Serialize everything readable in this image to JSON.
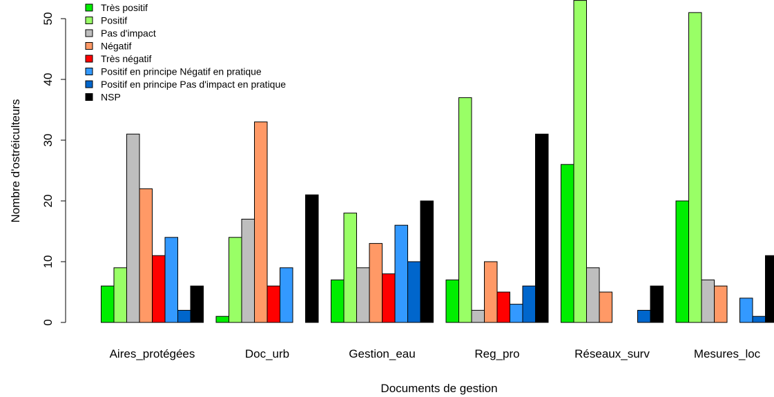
{
  "chart_data": {
    "type": "bar",
    "title": "",
    "xlabel": "Documents de gestion",
    "ylabel": "Nombre d'ostréiculteurs",
    "ylim": [
      0,
      53
    ],
    "yticks": [
      "0",
      "10",
      "20",
      "30",
      "40",
      "50"
    ],
    "ytick_values": [
      0,
      10,
      20,
      30,
      40,
      50
    ],
    "grid": false,
    "legend_position": "top-left",
    "categories": [
      "Aires_protégées",
      "Doc_urb",
      "Gestion_eau",
      "Reg_pro",
      "Réseaux_surv",
      "Mesures_loc"
    ],
    "series": [
      {
        "name": "Très positif",
        "color": "#00ee00",
        "values": [
          6,
          1,
          7,
          7,
          26,
          20
        ]
      },
      {
        "name": "Positif",
        "color": "#99ff66",
        "values": [
          9,
          14,
          18,
          37,
          53,
          51
        ]
      },
      {
        "name": "Pas d'impact",
        "color": "#bebebe",
        "values": [
          31,
          17,
          9,
          2,
          9,
          7
        ]
      },
      {
        "name": "Négatif",
        "color": "#ff9966",
        "values": [
          22,
          33,
          13,
          10,
          5,
          6
        ]
      },
      {
        "name": "Très négatif",
        "color": "#ff0000",
        "values": [
          11,
          6,
          8,
          5,
          0,
          0
        ]
      },
      {
        "name": "Positif en principe Négatif en pratique",
        "color": "#3399ff",
        "values": [
          14,
          9,
          16,
          3,
          0,
          4
        ]
      },
      {
        "name": "Positif en principe Pas d'impact en pratique",
        "color": "#0066cc",
        "values": [
          2,
          0,
          10,
          6,
          2,
          1
        ]
      },
      {
        "name": "NSP",
        "color": "#000000",
        "values": [
          6,
          21,
          20,
          31,
          6,
          11
        ]
      }
    ]
  }
}
